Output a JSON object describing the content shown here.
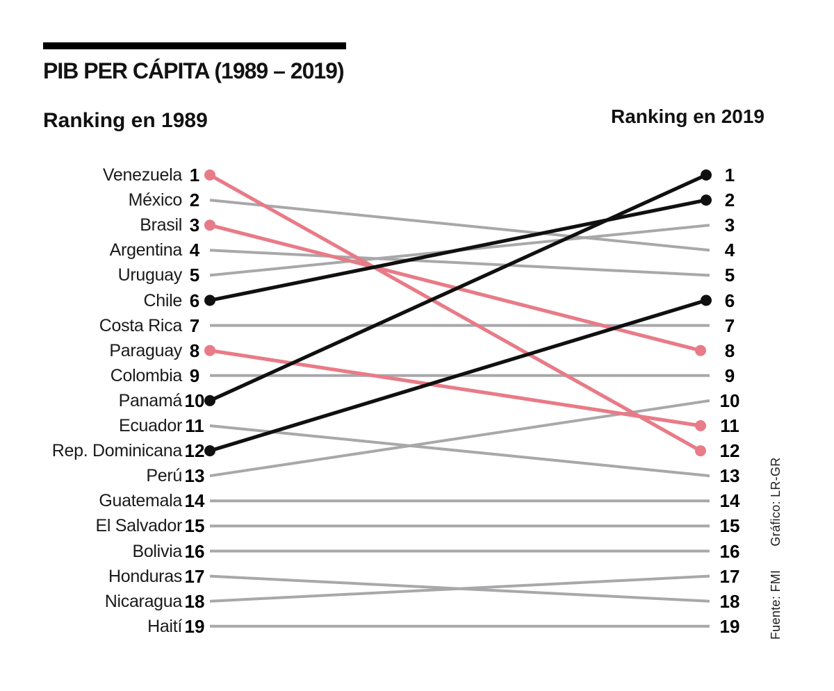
{
  "title": "PIB PER CÁPITA (1989 – 2019)",
  "left_header": "Ranking en 1989",
  "right_header": "Ranking en 2019",
  "source": "Fuente: FMI",
  "credit": "Gráfico: LR-GR",
  "colors": {
    "gray": "#a8a8aa",
    "pink": "#e87b87",
    "black": "#101010"
  },
  "chart_data": {
    "type": "slope",
    "title": "PIB PER CÁPITA (1989 – 2019)",
    "left_axis_label": "Ranking en 1989",
    "right_axis_label": "Ranking en 2019",
    "right_ranks": [
      1,
      2,
      3,
      4,
      5,
      6,
      7,
      8,
      9,
      10,
      11,
      12,
      13,
      14,
      15,
      16,
      17,
      18,
      19
    ],
    "countries": [
      {
        "name": "Venezuela",
        "rank_1989": 1,
        "rank_2019": 12,
        "color": "pink"
      },
      {
        "name": "México",
        "rank_1989": 2,
        "rank_2019": 4,
        "color": "gray"
      },
      {
        "name": "Brasil",
        "rank_1989": 3,
        "rank_2019": 8,
        "color": "pink"
      },
      {
        "name": "Argentina",
        "rank_1989": 4,
        "rank_2019": 5,
        "color": "gray"
      },
      {
        "name": "Uruguay",
        "rank_1989": 5,
        "rank_2019": 3,
        "color": "gray"
      },
      {
        "name": "Chile",
        "rank_1989": 6,
        "rank_2019": 2,
        "color": "black"
      },
      {
        "name": "Costa Rica",
        "rank_1989": 7,
        "rank_2019": 7,
        "color": "gray"
      },
      {
        "name": "Paraguay",
        "rank_1989": 8,
        "rank_2019": 11,
        "color": "pink"
      },
      {
        "name": "Colombia",
        "rank_1989": 9,
        "rank_2019": 9,
        "color": "gray"
      },
      {
        "name": "Panamá",
        "rank_1989": 10,
        "rank_2019": 1,
        "color": "black"
      },
      {
        "name": "Ecuador",
        "rank_1989": 11,
        "rank_2019": 13,
        "color": "gray"
      },
      {
        "name": "Rep. Dominicana",
        "rank_1989": 12,
        "rank_2019": 6,
        "color": "black"
      },
      {
        "name": "Perú",
        "rank_1989": 13,
        "rank_2019": 10,
        "color": "gray"
      },
      {
        "name": "Guatemala",
        "rank_1989": 14,
        "rank_2019": 14,
        "color": "gray"
      },
      {
        "name": "El Salvador",
        "rank_1989": 15,
        "rank_2019": 15,
        "color": "gray"
      },
      {
        "name": "Bolivia",
        "rank_1989": 16,
        "rank_2019": 16,
        "color": "gray"
      },
      {
        "name": "Honduras",
        "rank_1989": 17,
        "rank_2019": 18,
        "color": "gray"
      },
      {
        "name": "Nicaragua",
        "rank_1989": 18,
        "rank_2019": 17,
        "color": "gray"
      },
      {
        "name": "Haití",
        "rank_1989": 19,
        "rank_2019": 19,
        "color": "gray"
      }
    ]
  }
}
